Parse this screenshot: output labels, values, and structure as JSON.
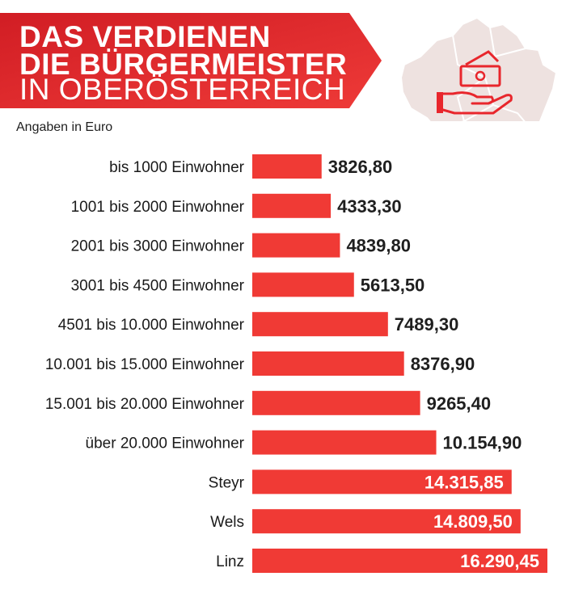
{
  "header": {
    "title_line1": "DAS VERDIENEN",
    "title_line2": "DIE BÜRGERMEISTER",
    "title_line3": "IN OBERÖSTERREICH",
    "subtitle": "Angaben in Euro",
    "map_icon": "upper-austria-map-money-hand-icon",
    "accent_color": "#e8262c",
    "map_color": "#eee2e0"
  },
  "chart_data": {
    "type": "bar",
    "orientation": "horizontal",
    "categories": [
      "bis 1000 Einwohner",
      "1001 bis 2000 Einwohner",
      "2001 bis 3000 Einwohner",
      "3001 bis 4500 Einwohner",
      "4501 bis 10.000 Einwohner",
      "10.001 bis 15.000 Einwohner",
      "15.001 bis 20.000 Einwohner",
      "über 20.000 Einwohner",
      "Steyr",
      "Wels",
      "Linz"
    ],
    "values": [
      3826.8,
      4333.3,
      4839.8,
      5613.5,
      7489.3,
      8376.9,
      9265.4,
      10154.9,
      14315.85,
      14809.5,
      16290.45
    ],
    "value_labels": [
      "3826,80",
      "4333,30",
      "4839,80",
      "5613,50",
      "7489,30",
      "8376,90",
      "9265,40",
      "10.154,90",
      "14.315,85",
      "14.809,50",
      "16.290,45"
    ],
    "labels_inside": [
      false,
      false,
      false,
      false,
      false,
      false,
      false,
      false,
      true,
      true,
      true
    ],
    "title": "DAS VERDIENEN DIE BÜRGERMEISTER IN OBERÖSTERREICH",
    "unit": "Angaben in Euro",
    "bar_color": "#f03a35",
    "grid": false,
    "legend": "none"
  }
}
